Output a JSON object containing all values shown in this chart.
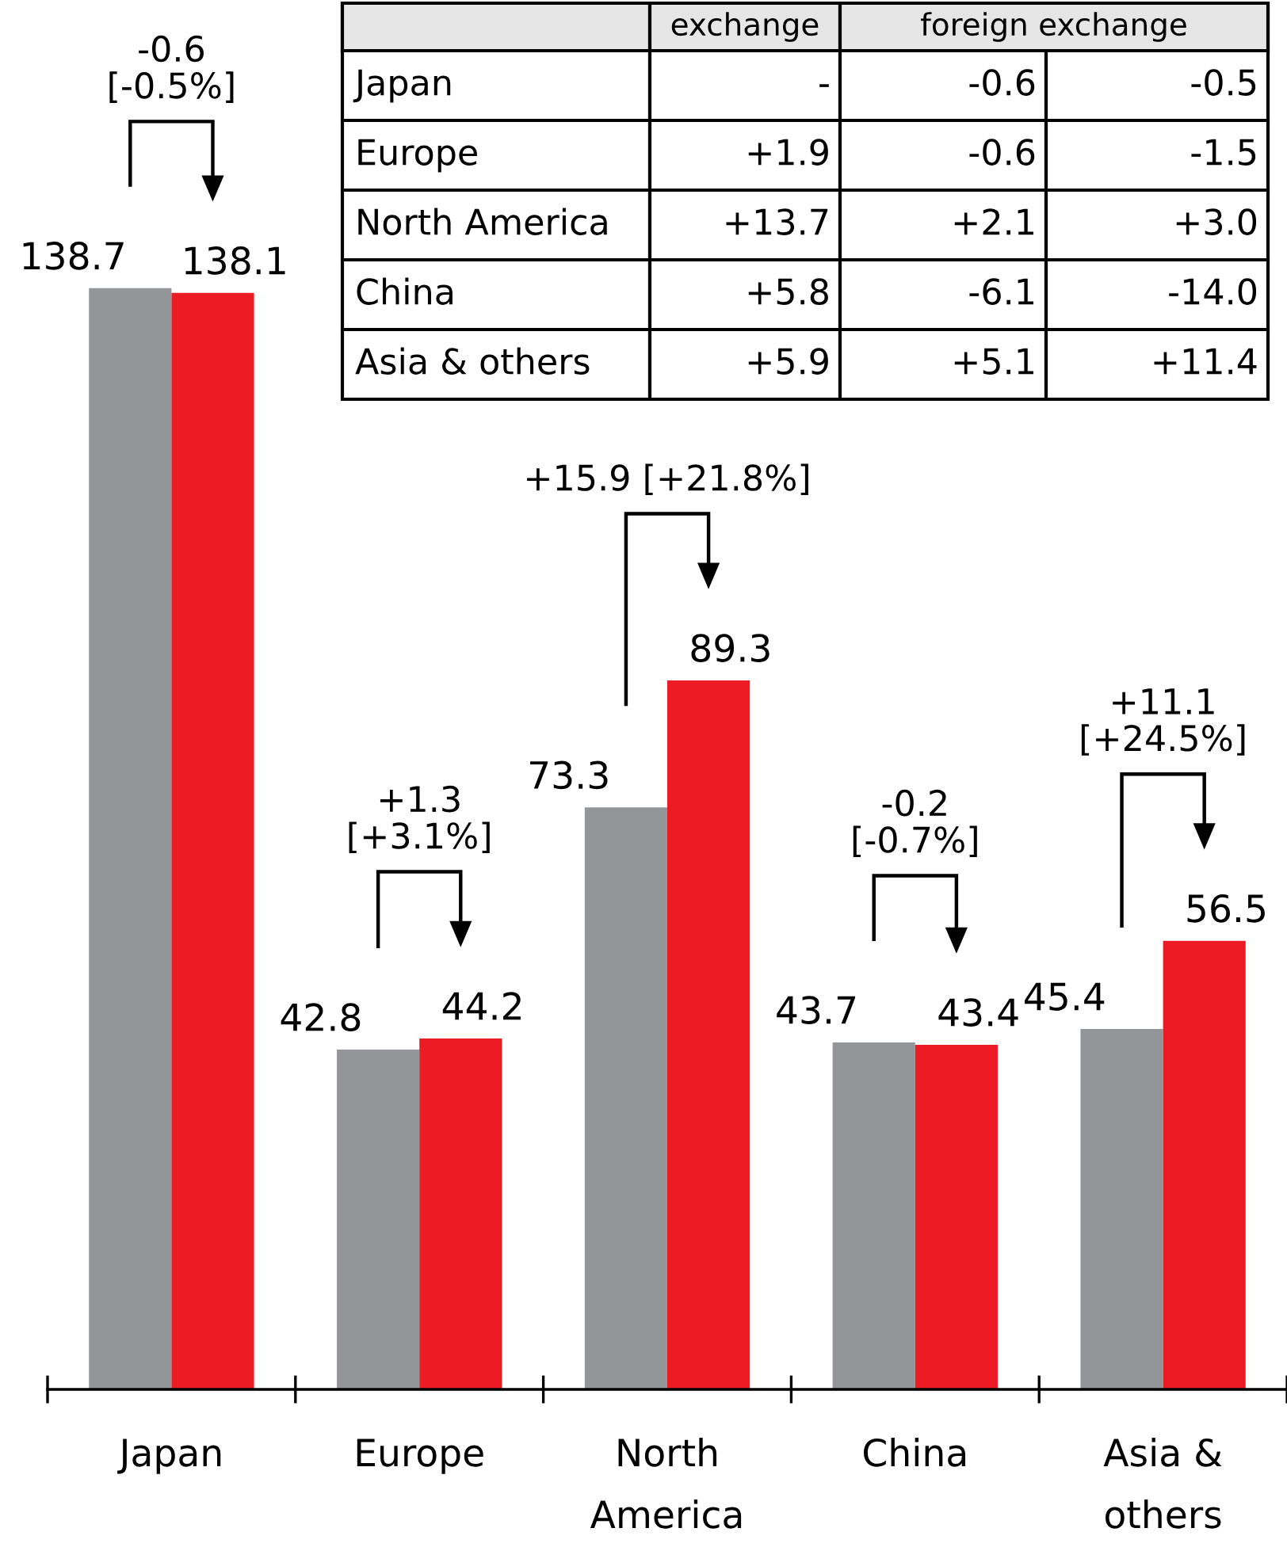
{
  "chart_data": {
    "type": "bar",
    "categories": [
      "Japan",
      "Europe",
      "North America",
      "China",
      "Asia & others"
    ],
    "series": [
      {
        "color": "#939598",
        "values": [
          138.7,
          42.8,
          73.3,
          43.7,
          45.4
        ]
      },
      {
        "color": "#ed1c24",
        "values": [
          138.1,
          44.2,
          89.3,
          43.4,
          56.5
        ]
      }
    ],
    "ylim": [
      0,
      175
    ],
    "data_labels": true,
    "grid": false,
    "legend": false,
    "tick_labels": "x",
    "annotations": [
      "-0.6\n[-0.5%]",
      "+1.3\n[+3.1%]",
      "+15.9 [+21.8%]",
      "-0.2\n[-0.7%]",
      "+11.1\n[+24.5%]",
      "exchange",
      "foreign exchange",
      "Japan",
      "-",
      "-0.6",
      "-0.5",
      "Europe",
      "+1.9",
      "-0.6",
      "-1.5",
      "North America",
      "+13.7",
      "+2.1",
      "+3.0",
      "China",
      "+5.8",
      "-6.1",
      "-14.0",
      "Asia & others",
      "+5.9",
      "+5.1",
      "+11.4"
    ]
  }
}
